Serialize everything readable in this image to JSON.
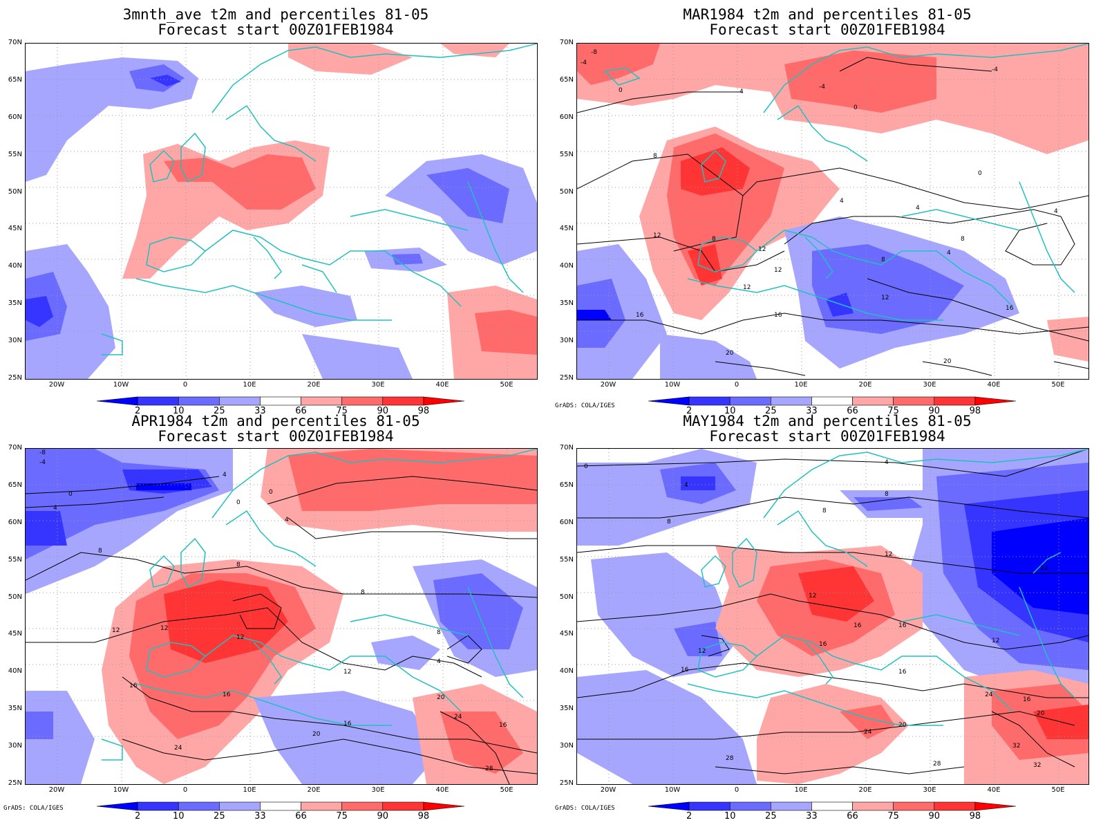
{
  "panels": [
    {
      "id": "p1",
      "title_line1": "3mnth_ave t2m and percentiles 81-05",
      "title_line2": "Forecast start 00Z01FEB1984",
      "credit": "",
      "has_contours": false
    },
    {
      "id": "p2",
      "title_line1": "MAR1984 t2m and percentiles 81-05",
      "title_line2": "Forecast start 00Z01FEB1984",
      "credit": "GrADS: COLA/IGES",
      "has_contours": true
    },
    {
      "id": "p3",
      "title_line1": "APR1984 t2m and percentiles 81-05",
      "title_line2": "Forecast start 00Z01FEB1984",
      "credit": "GrADS: COLA/IGES",
      "has_contours": true
    },
    {
      "id": "p4",
      "title_line1": "MAY1984 t2m and percentiles 81-05",
      "title_line2": "Forecast start 00Z01FEB1984",
      "credit": "GrADS: COLA/IGES",
      "has_contours": true
    }
  ],
  "lat_labels": [
    "70N",
    "65N",
    "60N",
    "55N",
    "50N",
    "45N",
    "40N",
    "35N",
    "30N",
    "25N"
  ],
  "lon_labels": [
    "20W",
    "10W",
    "0",
    "10E",
    "20E",
    "30E",
    "40E",
    "50E"
  ],
  "colorbar": {
    "labels": [
      "2",
      "10",
      "25",
      "33",
      "66",
      "75",
      "90",
      "98"
    ],
    "colors": [
      "#0000ff",
      "#3535ff",
      "#6b6bff",
      "#a6a6ff",
      "#ffffff",
      "#ffa6a6",
      "#ff6b6b",
      "#ff3535",
      "#ff0000"
    ]
  },
  "colors": {
    "coast": "#20c0c0",
    "contour": "#000000",
    "grid": "#999999"
  },
  "contour_labels": {
    "p2": [
      "-8",
      "-4",
      "0",
      "-4",
      "-4",
      "0",
      "4",
      "8",
      "4",
      "4",
      "0",
      "8",
      "12",
      "8",
      "4",
      "12",
      "16",
      "12",
      "12",
      "16",
      "20",
      "20",
      "4",
      "8",
      "12",
      "16"
    ],
    "p3": [
      "-8",
      "-4",
      "0",
      "4",
      "4",
      "0",
      "0",
      "4",
      "8",
      "8",
      "8",
      "12",
      "12",
      "12",
      "16",
      "16",
      "20",
      "12",
      "16",
      "20",
      "24",
      "16",
      "24",
      "28",
      "4",
      "8"
    ],
    "p4": [
      "0",
      "4",
      "8",
      "4",
      "8",
      "8",
      "12",
      "12",
      "12",
      "12",
      "16",
      "16",
      "16",
      "16",
      "12",
      "16",
      "20",
      "24",
      "24",
      "28",
      "20",
      "28",
      "32",
      "32",
      "16"
    ]
  }
}
